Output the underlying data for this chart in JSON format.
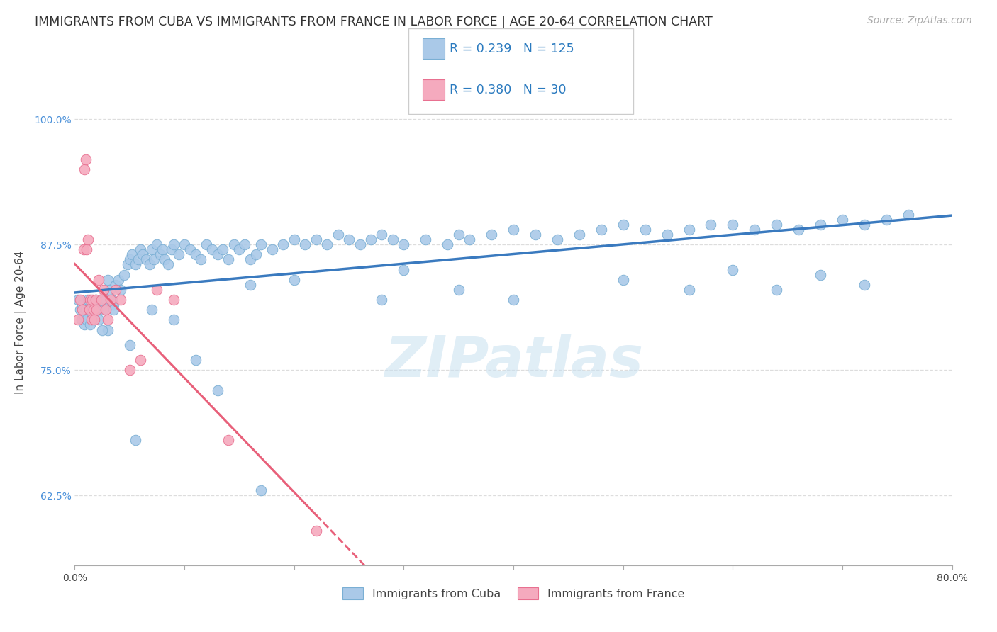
{
  "title": "IMMIGRANTS FROM CUBA VS IMMIGRANTS FROM FRANCE IN LABOR FORCE | AGE 20-64 CORRELATION CHART",
  "source": "Source: ZipAtlas.com",
  "ylabel": "In Labor Force | Age 20-64",
  "xlim": [
    0.0,
    0.8
  ],
  "ylim": [
    0.555,
    1.04
  ],
  "xticks": [
    0.0,
    0.1,
    0.2,
    0.3,
    0.4,
    0.5,
    0.6,
    0.7,
    0.8
  ],
  "xticklabels": [
    "0.0%",
    "",
    "",
    "",
    "",
    "",
    "",
    "",
    "80.0%"
  ],
  "ytick_positions": [
    0.625,
    0.75,
    0.875,
    1.0
  ],
  "yticklabels": [
    "62.5%",
    "75.0%",
    "87.5%",
    "100.0%"
  ],
  "cuba_color": "#aac9e8",
  "france_color": "#f5aabe",
  "cuba_edge": "#7aafd4",
  "france_edge": "#e87090",
  "trend_cuba_color": "#3a7abf",
  "trend_france_color": "#e8607a",
  "cuba_R": 0.239,
  "cuba_N": 125,
  "france_R": 0.38,
  "france_N": 30,
  "legend_label_cuba": "Immigrants from Cuba",
  "legend_label_france": "Immigrants from France",
  "watermark": "ZIPatlas",
  "title_fontsize": 12.5,
  "source_fontsize": 10,
  "axis_label_fontsize": 11,
  "tick_fontsize": 10,
  "cuba_x": [
    0.003,
    0.005,
    0.006,
    0.007,
    0.008,
    0.009,
    0.01,
    0.011,
    0.012,
    0.013,
    0.014,
    0.015,
    0.016,
    0.017,
    0.018,
    0.019,
    0.02,
    0.021,
    0.022,
    0.023,
    0.025,
    0.026,
    0.028,
    0.03,
    0.032,
    0.034,
    0.035,
    0.037,
    0.04,
    0.042,
    0.045,
    0.048,
    0.05,
    0.052,
    0.055,
    0.058,
    0.06,
    0.062,
    0.065,
    0.068,
    0.07,
    0.072,
    0.075,
    0.078,
    0.08,
    0.082,
    0.085,
    0.088,
    0.09,
    0.095,
    0.1,
    0.105,
    0.11,
    0.115,
    0.12,
    0.125,
    0.13,
    0.135,
    0.14,
    0.145,
    0.15,
    0.155,
    0.16,
    0.165,
    0.17,
    0.18,
    0.19,
    0.2,
    0.21,
    0.22,
    0.23,
    0.24,
    0.25,
    0.26,
    0.27,
    0.28,
    0.29,
    0.3,
    0.32,
    0.34,
    0.35,
    0.36,
    0.38,
    0.4,
    0.42,
    0.44,
    0.46,
    0.48,
    0.5,
    0.52,
    0.54,
    0.56,
    0.58,
    0.6,
    0.62,
    0.64,
    0.66,
    0.68,
    0.7,
    0.72,
    0.74,
    0.76,
    0.03,
    0.05,
    0.07,
    0.09,
    0.11,
    0.13,
    0.16,
    0.2,
    0.28,
    0.3,
    0.35,
    0.4,
    0.5,
    0.56,
    0.6,
    0.64,
    0.68,
    0.72,
    0.015,
    0.025,
    0.035,
    0.055,
    0.17
  ],
  "cuba_y": [
    0.82,
    0.81,
    0.8,
    0.815,
    0.805,
    0.795,
    0.81,
    0.8,
    0.82,
    0.81,
    0.795,
    0.815,
    0.805,
    0.81,
    0.8,
    0.82,
    0.815,
    0.81,
    0.8,
    0.82,
    0.815,
    0.81,
    0.82,
    0.84,
    0.83,
    0.82,
    0.815,
    0.835,
    0.84,
    0.83,
    0.845,
    0.855,
    0.86,
    0.865,
    0.855,
    0.86,
    0.87,
    0.865,
    0.86,
    0.855,
    0.87,
    0.86,
    0.875,
    0.865,
    0.87,
    0.86,
    0.855,
    0.87,
    0.875,
    0.865,
    0.875,
    0.87,
    0.865,
    0.86,
    0.875,
    0.87,
    0.865,
    0.87,
    0.86,
    0.875,
    0.87,
    0.875,
    0.86,
    0.865,
    0.875,
    0.87,
    0.875,
    0.88,
    0.875,
    0.88,
    0.875,
    0.885,
    0.88,
    0.875,
    0.88,
    0.885,
    0.88,
    0.875,
    0.88,
    0.875,
    0.885,
    0.88,
    0.885,
    0.89,
    0.885,
    0.88,
    0.885,
    0.89,
    0.895,
    0.89,
    0.885,
    0.89,
    0.895,
    0.895,
    0.89,
    0.895,
    0.89,
    0.895,
    0.9,
    0.895,
    0.9,
    0.905,
    0.79,
    0.775,
    0.81,
    0.8,
    0.76,
    0.73,
    0.835,
    0.84,
    0.82,
    0.85,
    0.83,
    0.82,
    0.84,
    0.83,
    0.85,
    0.83,
    0.845,
    0.835,
    0.81,
    0.79,
    0.81,
    0.68,
    0.63
  ],
  "france_x": [
    0.003,
    0.005,
    0.007,
    0.008,
    0.009,
    0.01,
    0.011,
    0.012,
    0.013,
    0.014,
    0.015,
    0.016,
    0.017,
    0.018,
    0.019,
    0.02,
    0.022,
    0.024,
    0.026,
    0.028,
    0.03,
    0.033,
    0.037,
    0.042,
    0.05,
    0.06,
    0.075,
    0.09,
    0.14,
    0.22
  ],
  "france_y": [
    0.8,
    0.82,
    0.81,
    0.87,
    0.95,
    0.96,
    0.87,
    0.88,
    0.81,
    0.82,
    0.8,
    0.82,
    0.81,
    0.8,
    0.82,
    0.81,
    0.84,
    0.82,
    0.83,
    0.81,
    0.8,
    0.82,
    0.83,
    0.82,
    0.75,
    0.76,
    0.83,
    0.82,
    0.68,
    0.59
  ]
}
